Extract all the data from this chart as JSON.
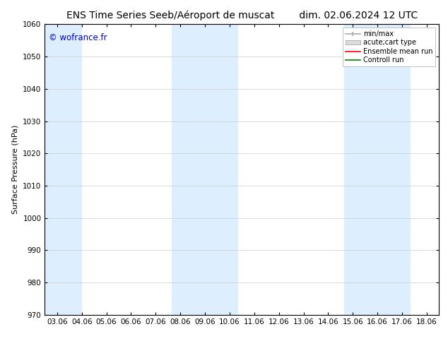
{
  "title_left": "ENS Time Series Seeb/Aéroport de muscat",
  "title_right": "dim. 02.06.2024 12 UTC",
  "ylabel": "Surface Pressure (hPa)",
  "ylim": [
    970,
    1060
  ],
  "yticks": [
    970,
    980,
    990,
    1000,
    1010,
    1020,
    1030,
    1040,
    1050,
    1060
  ],
  "xtick_labels": [
    "03.06",
    "04.06",
    "05.06",
    "06.06",
    "07.06",
    "08.06",
    "09.06",
    "10.06",
    "11.06",
    "12.06",
    "13.06",
    "14.06",
    "15.06",
    "16.06",
    "17.06",
    "18.06"
  ],
  "watermark": "© wofrance.fr",
  "watermark_color": "#0000cc",
  "bg_color": "#ffffff",
  "plot_bg_color": "#ffffff",
  "shaded_color": "#ddeeff",
  "grid_color": "#cccccc",
  "legend_minmax_color": "#aaaaaa",
  "legend_acute_color": "#dddddd",
  "legend_ens_color": "#ff0000",
  "legend_ctrl_color": "#008000",
  "title_fontsize": 10,
  "label_fontsize": 8,
  "tick_fontsize": 7.5
}
